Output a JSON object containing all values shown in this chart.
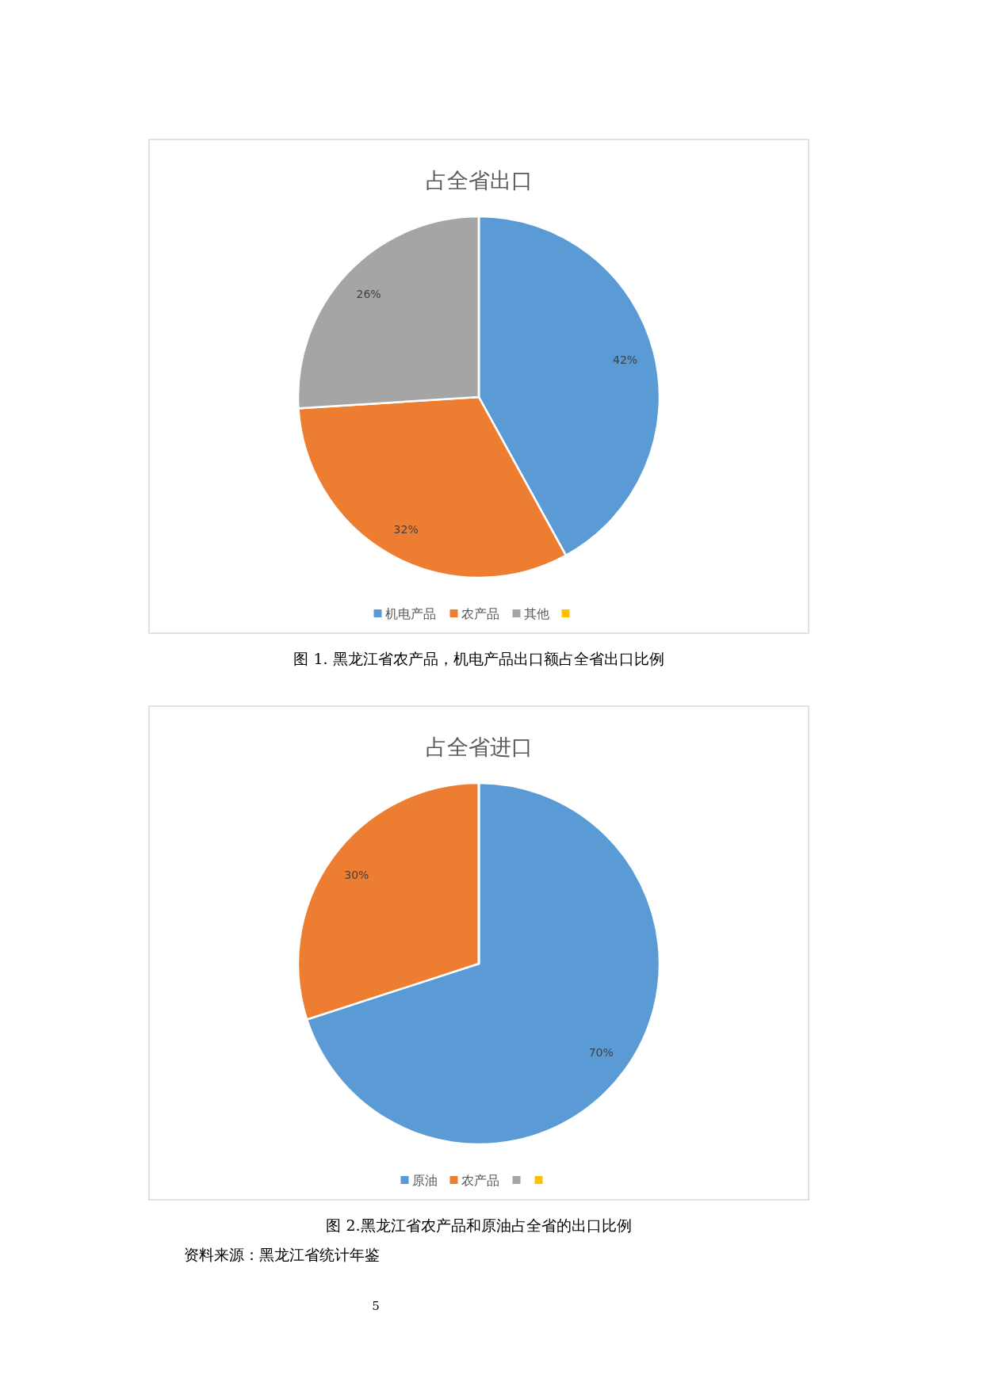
{
  "chart_data": [
    {
      "type": "pie",
      "title": "占全省出口",
      "categories": [
        "机电产品",
        "农产品",
        "其他",
        null
      ],
      "values": [
        42,
        32,
        26,
        0
      ],
      "colors": [
        "#5b9bd5",
        "#ed7d31",
        "#a5a5a5",
        "#ffc000"
      ],
      "value_labels": [
        "42%",
        "32%",
        "26%",
        null
      ],
      "legend": "bottom",
      "annotations": [
        "图 1. 黑龙江省农产品，机电产品出口额占全省出口比例"
      ]
    },
    {
      "type": "pie",
      "title": "占全省进口",
      "categories": [
        "原油",
        "农产品",
        null,
        null
      ],
      "values": [
        70,
        30,
        0,
        0
      ],
      "colors": [
        "#5b9bd5",
        "#ed7d31",
        "#a5a5a5",
        "#ffc000"
      ],
      "value_labels": [
        "70%",
        "30%",
        null,
        null
      ],
      "legend": "bottom",
      "annotations": [
        "图 2.黑龙江省农产品和原油占全省的出口比例",
        "资料来源：黑龙江省统计年鉴",
        "5"
      ]
    }
  ]
}
